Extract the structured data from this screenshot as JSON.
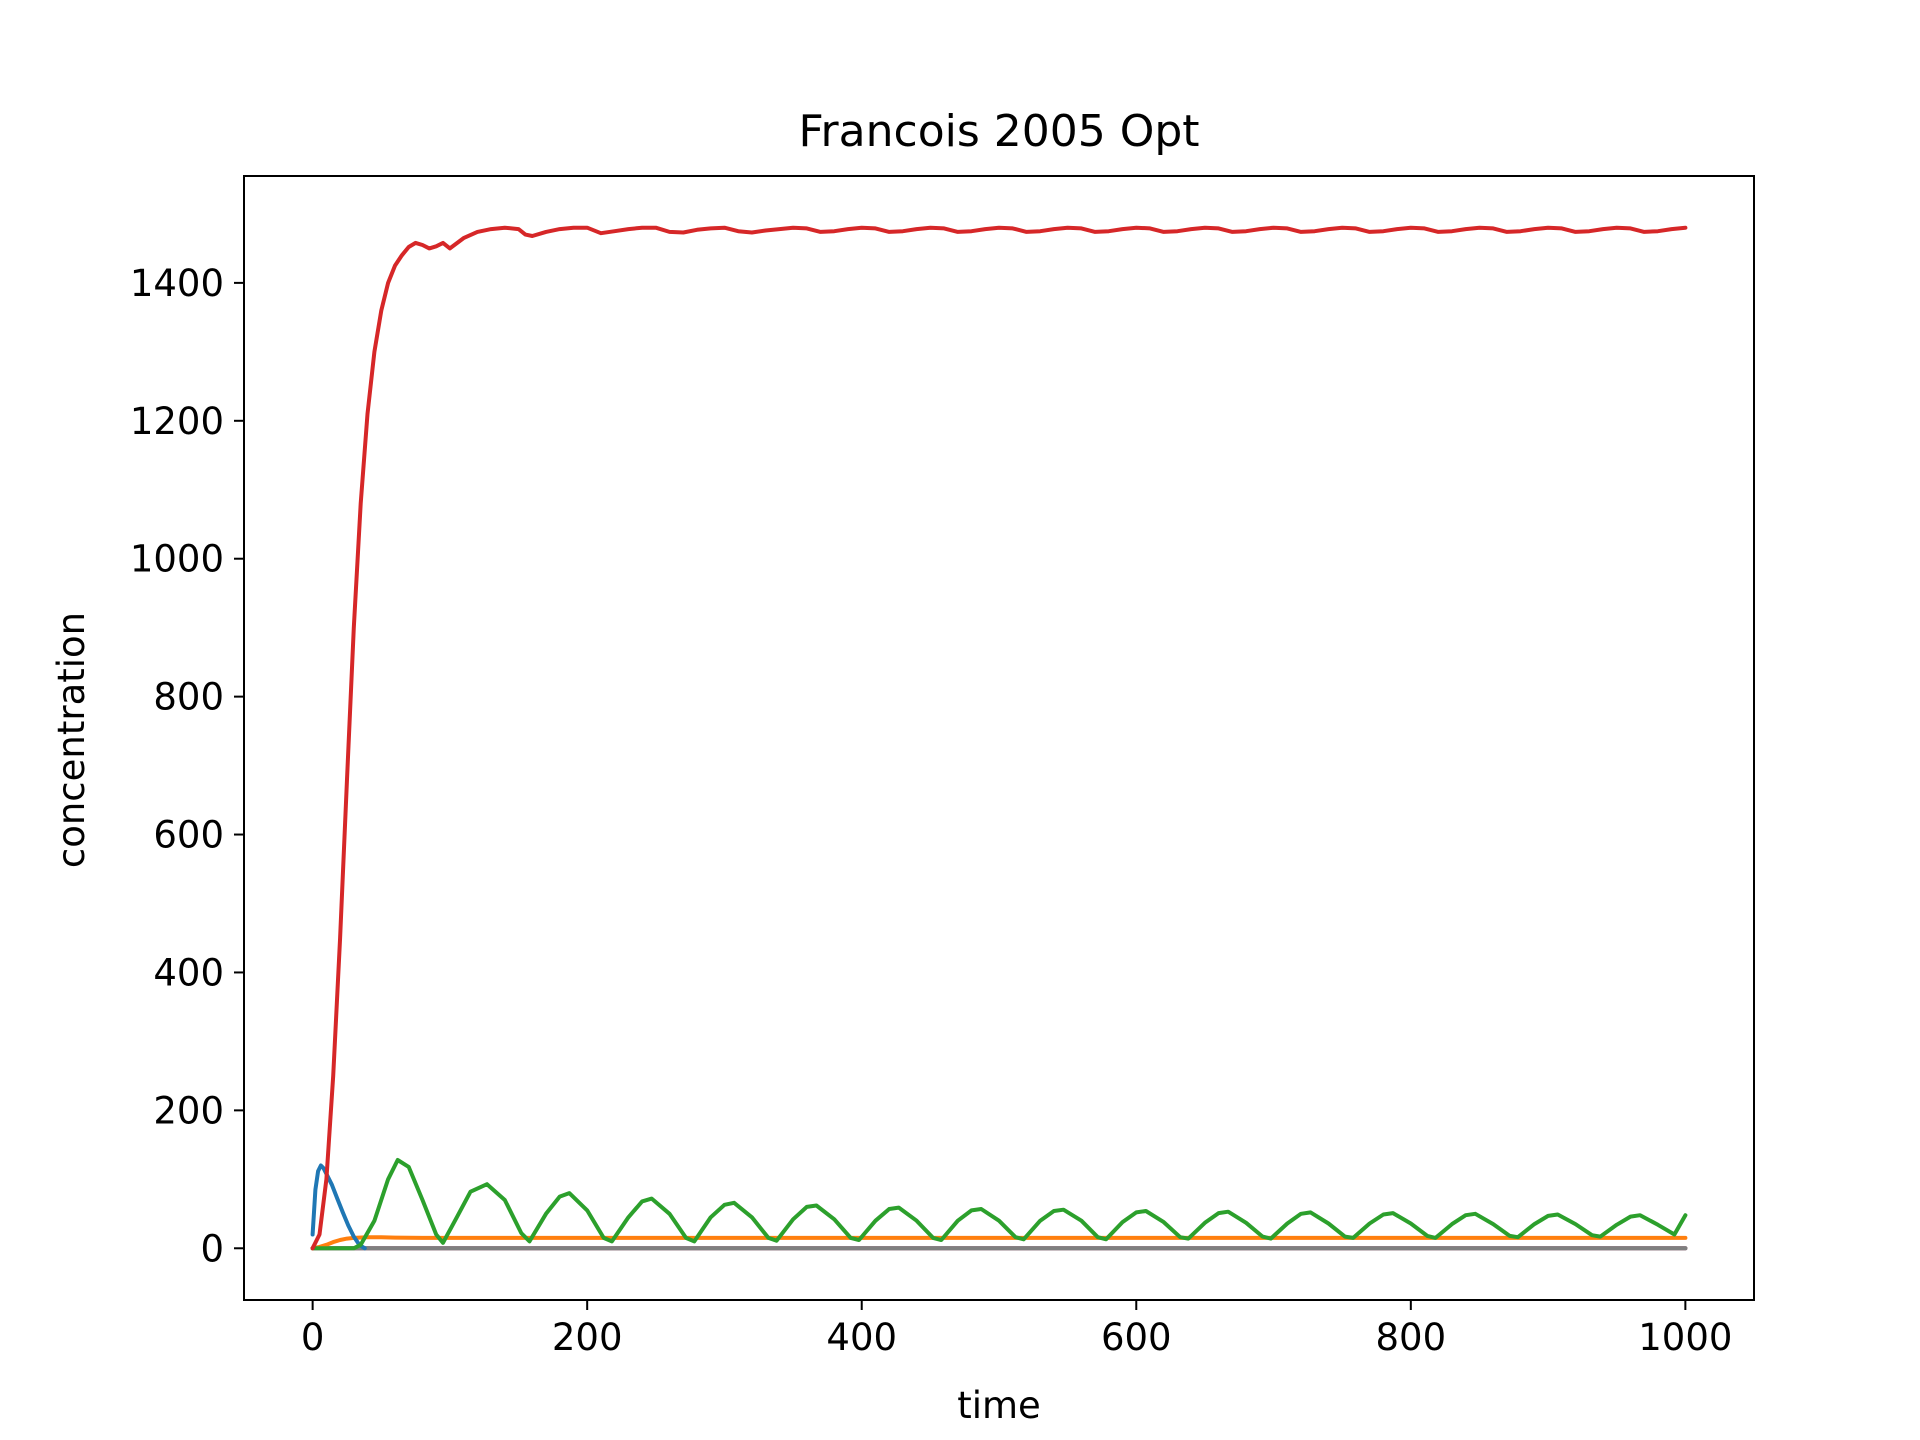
{
  "chart_data": {
    "type": "line",
    "title": "Francois 2005 Opt",
    "xlabel": "time",
    "ylabel": "concentration",
    "xlim": [
      -50,
      1050
    ],
    "ylim": [
      -75,
      1555
    ],
    "xticks": [
      0,
      200,
      400,
      600,
      800,
      1000
    ],
    "yticks": [
      0,
      200,
      400,
      600,
      800,
      1000,
      1200,
      1400
    ],
    "grid": false,
    "legend": "none",
    "series": [
      {
        "color": "#1f77b4",
        "x": [
          0,
          2,
          4,
          6,
          8,
          10,
          14,
          18,
          22,
          26,
          30,
          34,
          38
        ],
        "y": [
          20,
          85,
          112,
          120,
          116,
          108,
          92,
          72,
          52,
          33,
          17,
          5,
          0
        ]
      },
      {
        "color": "#ff7f0e",
        "x": [
          0,
          5,
          10,
          15,
          20,
          25,
          30,
          40,
          50,
          60,
          80,
          100,
          150,
          200,
          300,
          400,
          500,
          600,
          700,
          800,
          900,
          1000
        ],
        "y": [
          0,
          2,
          5,
          9,
          12,
          14,
          15,
          16,
          16,
          15.5,
          15,
          15,
          15,
          15,
          15,
          15,
          15,
          15,
          15,
          15,
          15,
          15
        ]
      },
      {
        "color": "#2ca02c",
        "x": [
          0,
          10,
          20,
          30,
          35,
          45,
          55,
          62,
          70,
          80,
          90,
          95,
          105,
          115,
          127,
          140,
          152,
          158,
          170,
          180,
          187,
          200,
          212,
          218,
          230,
          240,
          247,
          260,
          272,
          278,
          290,
          300,
          307,
          320,
          332,
          338,
          350,
          360,
          367,
          380,
          392,
          398,
          410,
          420,
          427,
          440,
          452,
          458,
          470,
          480,
          487,
          500,
          512,
          518,
          530,
          540,
          547,
          560,
          572,
          578,
          590,
          600,
          607,
          620,
          632,
          638,
          650,
          660,
          667,
          680,
          692,
          698,
          710,
          720,
          727,
          740,
          752,
          758,
          770,
          780,
          787,
          800,
          812,
          818,
          830,
          840,
          847,
          860,
          872,
          878,
          890,
          900,
          907,
          920,
          932,
          938,
          950,
          960,
          967,
          980,
          992,
          1000
        ],
        "y": [
          0,
          0,
          0,
          0,
          5,
          40,
          100,
          128,
          118,
          70,
          20,
          8,
          45,
          82,
          93,
          70,
          22,
          10,
          50,
          75,
          80,
          55,
          15,
          10,
          45,
          68,
          72,
          50,
          15,
          10,
          45,
          63,
          66,
          45,
          15,
          11,
          42,
          60,
          62,
          42,
          15,
          12,
          40,
          57,
          59,
          40,
          15,
          12,
          40,
          55,
          57,
          40,
          16,
          13,
          40,
          54,
          56,
          40,
          16,
          13,
          38,
          52,
          54,
          38,
          16,
          14,
          37,
          51,
          53,
          37,
          17,
          14,
          36,
          50,
          52,
          36,
          17,
          15,
          36,
          49,
          51,
          36,
          18,
          15,
          35,
          48,
          50,
          35,
          18,
          16,
          35,
          47,
          49,
          35,
          19,
          17,
          34,
          46,
          48,
          34,
          20,
          48
        ]
      },
      {
        "color": "#d62728",
        "x": [
          0,
          5,
          10,
          15,
          20,
          25,
          30,
          35,
          40,
          45,
          50,
          55,
          60,
          65,
          70,
          75,
          80,
          85,
          90,
          95,
          100,
          110,
          120,
          130,
          140,
          150,
          155,
          160,
          170,
          180,
          190,
          200,
          210,
          220,
          230,
          240,
          250,
          260,
          270,
          280,
          290,
          300,
          310,
          320,
          330,
          340,
          350,
          360,
          370,
          380,
          390,
          400,
          410,
          420,
          430,
          440,
          450,
          460,
          470,
          480,
          490,
          500,
          510,
          520,
          530,
          540,
          550,
          560,
          570,
          580,
          590,
          600,
          610,
          620,
          630,
          640,
          650,
          660,
          670,
          680,
          690,
          700,
          710,
          720,
          730,
          740,
          750,
          760,
          770,
          780,
          790,
          800,
          810,
          820,
          830,
          840,
          850,
          860,
          870,
          880,
          890,
          900,
          910,
          920,
          930,
          940,
          950,
          960,
          970,
          980,
          990,
          1000
        ],
        "y": [
          0,
          20,
          100,
          250,
          450,
          680,
          900,
          1080,
          1210,
          1300,
          1360,
          1400,
          1425,
          1440,
          1452,
          1458,
          1455,
          1450,
          1453,
          1458,
          1450,
          1465,
          1474,
          1478,
          1480,
          1478,
          1470,
          1468,
          1474,
          1478,
          1480,
          1480,
          1472,
          1475,
          1478,
          1480,
          1480,
          1474,
          1473,
          1477,
          1479,
          1480,
          1475,
          1473,
          1476,
          1478,
          1480,
          1479,
          1474,
          1475,
          1478,
          1480,
          1479,
          1474,
          1475,
          1478,
          1480,
          1479,
          1474,
          1475,
          1478,
          1480,
          1479,
          1474,
          1475,
          1478,
          1480,
          1479,
          1474,
          1475,
          1478,
          1480,
          1479,
          1474,
          1475,
          1478,
          1480,
          1479,
          1474,
          1475,
          1478,
          1480,
          1479,
          1474,
          1475,
          1478,
          1480,
          1479,
          1474,
          1475,
          1478,
          1480,
          1479,
          1474,
          1475,
          1478,
          1480,
          1479,
          1474,
          1475,
          1478,
          1480,
          1479,
          1474,
          1475,
          1478,
          1480,
          1479,
          1474,
          1475,
          1478,
          1480
        ]
      },
      {
        "color": "#9467bd",
        "x": [
          0,
          100,
          200,
          300,
          400,
          500,
          600,
          700,
          800,
          900,
          1000
        ],
        "y": [
          0,
          0,
          0,
          0,
          0,
          0,
          0,
          0,
          0,
          0,
          0
        ]
      },
      {
        "color": "#8c564b",
        "x": [
          0,
          100,
          200,
          300,
          400,
          500,
          600,
          700,
          800,
          900,
          1000
        ],
        "y": [
          0,
          0,
          0,
          0,
          0,
          0,
          0,
          0,
          0,
          0,
          0
        ]
      },
      {
        "color": "#7f7f7f",
        "x": [
          0,
          100,
          200,
          300,
          400,
          500,
          600,
          700,
          800,
          900,
          1000
        ],
        "y": [
          0,
          0,
          0,
          0,
          0,
          0,
          0,
          0,
          0,
          0,
          0
        ]
      }
    ]
  }
}
